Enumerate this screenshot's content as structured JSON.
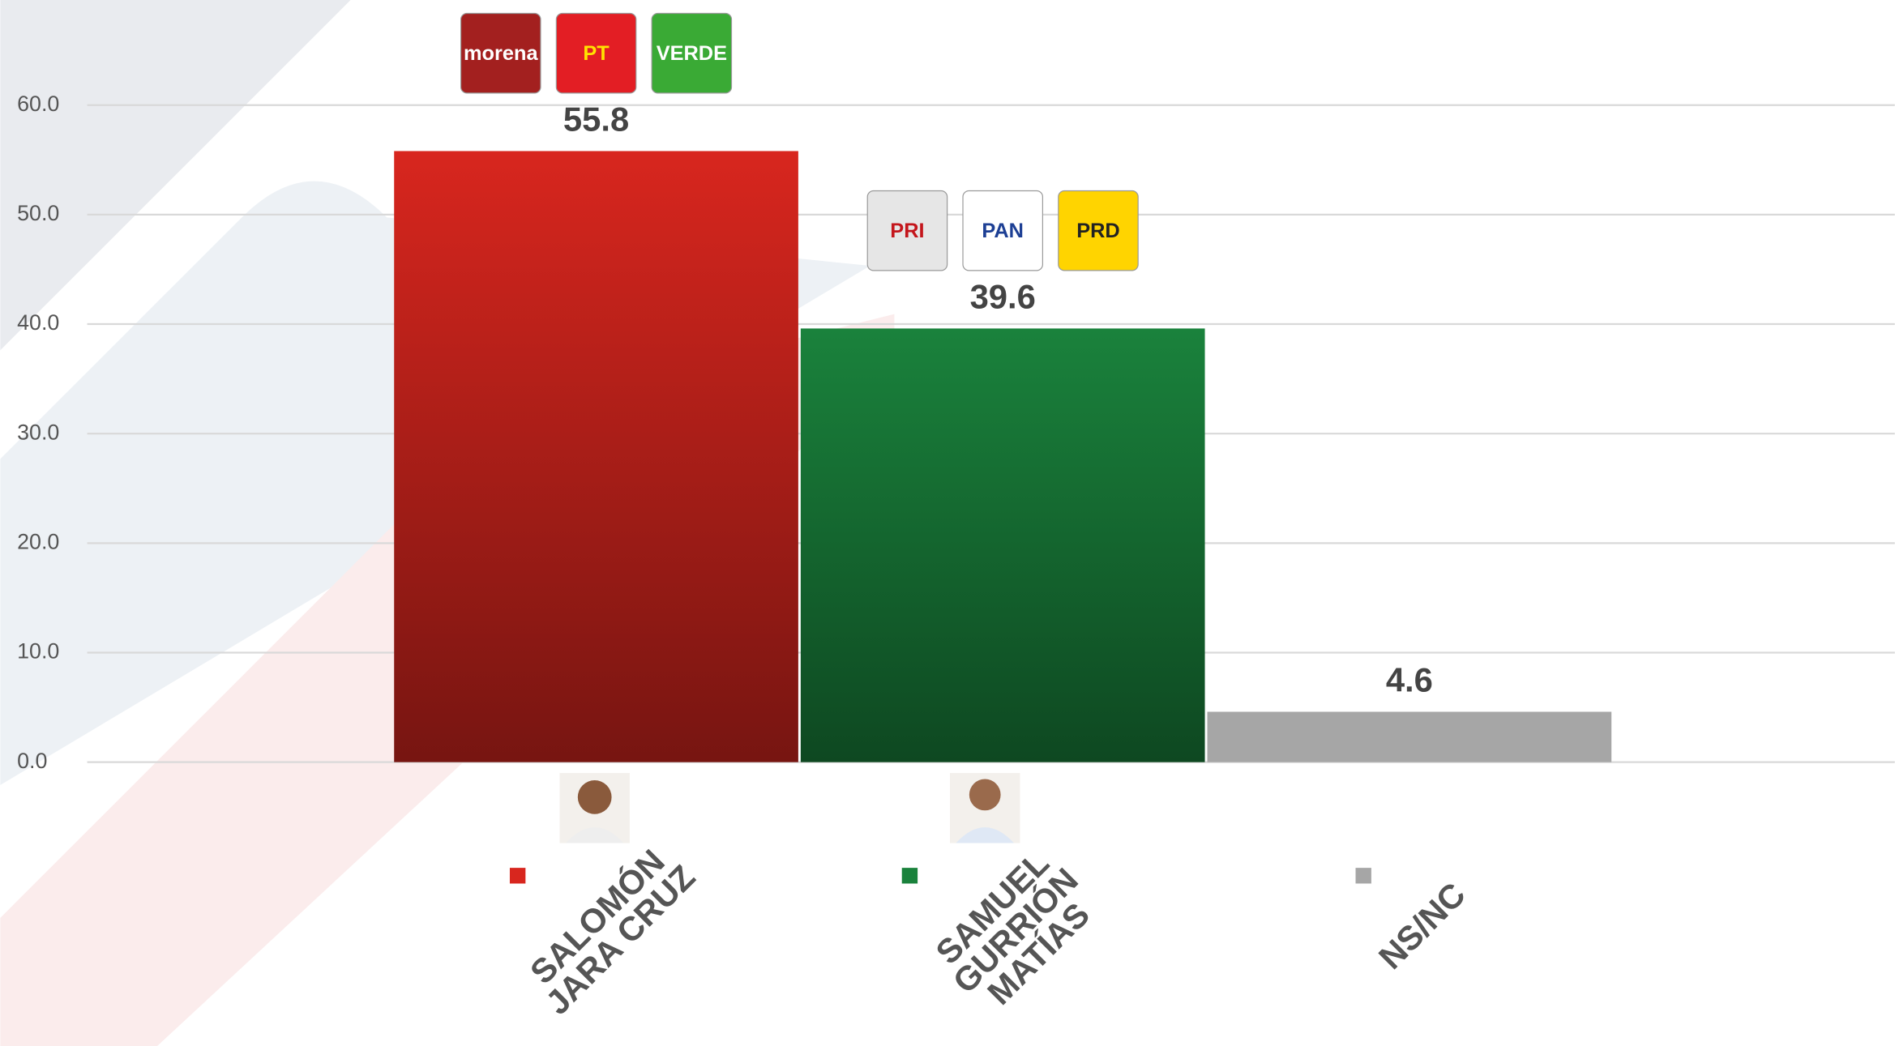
{
  "chart_data": {
    "type": "bar",
    "categories": [
      [
        "SALOMÓN",
        "JARA CRUZ"
      ],
      [
        "SAMUEL",
        "GURRIÓN",
        "MATÍAS"
      ],
      [
        "NS/NC"
      ]
    ],
    "values": [
      55.8,
      39.6,
      4.6
    ],
    "colors": [
      "#d8261e",
      "#1a823c",
      "#a6a6a6"
    ],
    "logos": [
      [
        "morena",
        "PT",
        "VERDE"
      ],
      [
        "PRI",
        "PAN",
        "PRD"
      ],
      []
    ],
    "ylim": [
      0,
      60
    ],
    "yticks": [
      {
        "value": 0,
        "label": "0.0"
      },
      {
        "value": 10,
        "label": "10.0"
      },
      {
        "value": 20,
        "label": "20.0"
      },
      {
        "value": 30,
        "label": "30.0"
      },
      {
        "value": 40,
        "label": "40.0"
      },
      {
        "value": 50,
        "label": "50.0"
      },
      {
        "value": 60,
        "label": "60.0"
      }
    ],
    "grid": true
  }
}
